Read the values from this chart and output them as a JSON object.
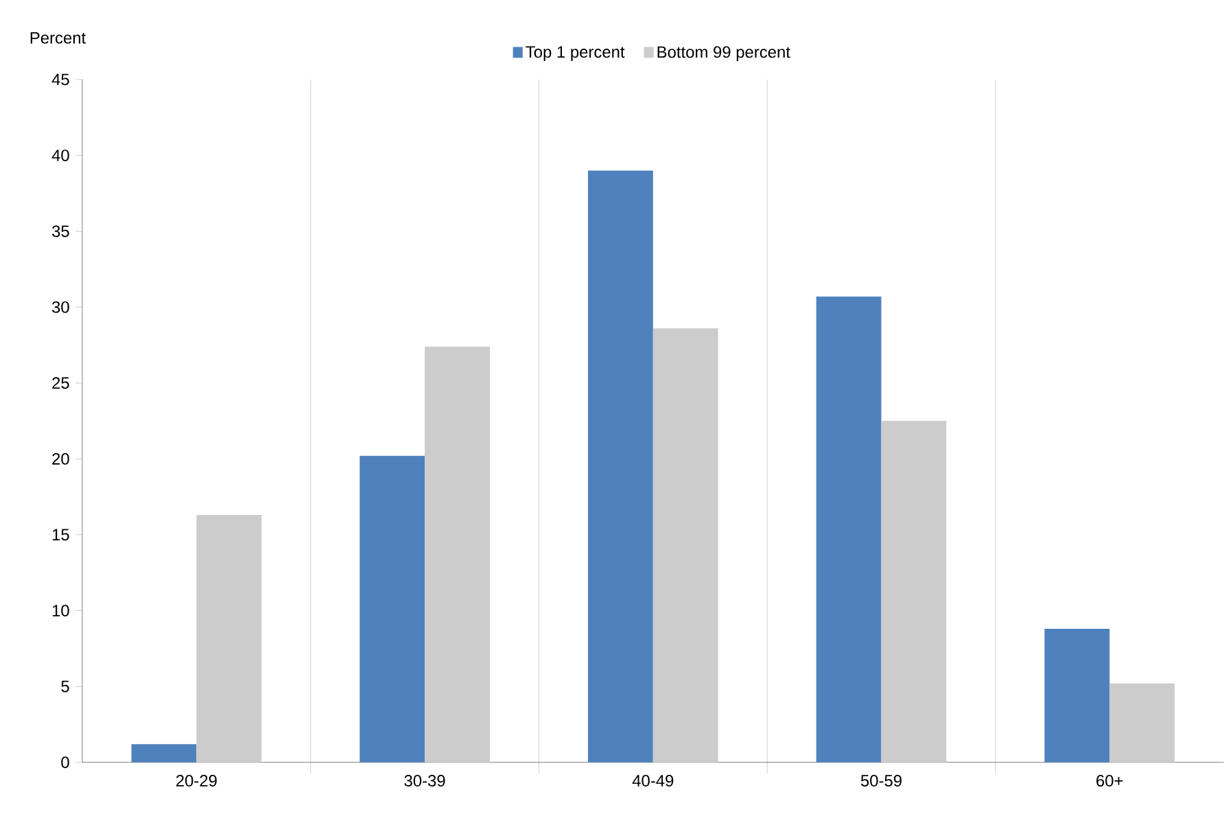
{
  "chart_data": {
    "type": "bar",
    "ylabel": "Percent",
    "categories": [
      "20-29",
      "30-39",
      "40-49",
      "50-59",
      "60+"
    ],
    "series": [
      {
        "name": "Top 1 percent",
        "color": "#4f81bd",
        "values": [
          1.2,
          20.2,
          39.0,
          30.7,
          8.8
        ]
      },
      {
        "name": "Bottom 99 percent",
        "color": "#cccccc",
        "values": [
          16.3,
          27.4,
          28.6,
          22.5,
          5.2
        ]
      }
    ],
    "ylim": [
      0,
      45
    ],
    "yticks": [
      0,
      5,
      10,
      15,
      20,
      25,
      30,
      35,
      40,
      45
    ],
    "grid": "x",
    "legend": "top"
  }
}
